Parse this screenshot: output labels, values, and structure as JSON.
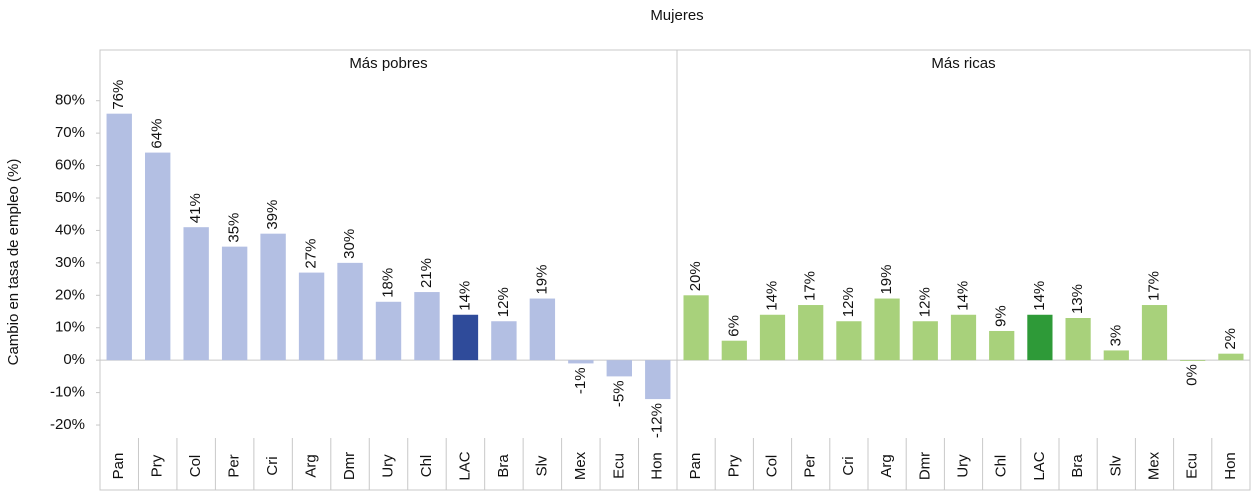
{
  "title": "Mujeres",
  "ylabel": "Cambio en tasa de empleo (%)",
  "chart_data": [
    {
      "type": "bar",
      "title": "Más pobres",
      "categories": [
        "Pan",
        "Pry",
        "Col",
        "Per",
        "Cri",
        "Arg",
        "Dmr",
        "Ury",
        "Chl",
        "LAC",
        "Bra",
        "Slv",
        "Mex",
        "Ecu",
        "Hon"
      ],
      "values": [
        76,
        64,
        41,
        35,
        39,
        27,
        30,
        18,
        21,
        14,
        12,
        19,
        -1,
        -5,
        -12
      ],
      "value_labels": [
        "76%",
        "64%",
        "41%",
        "35%",
        "39%",
        "27%",
        "30%",
        "18%",
        "21%",
        "14%",
        "12%",
        "19%",
        "-1%",
        "-5%",
        "-12%"
      ],
      "colors": [
        "#b3bfe3",
        "#b3bfe3",
        "#b3bfe3",
        "#b3bfe3",
        "#b3bfe3",
        "#b3bfe3",
        "#b3bfe3",
        "#b3bfe3",
        "#b3bfe3",
        "#2f4b9a",
        "#b3bfe3",
        "#b3bfe3",
        "#b3bfe3",
        "#b3bfe3",
        "#b3bfe3"
      ],
      "ylim": [
        -24,
        87
      ],
      "yticks": [
        {
          "value": -20,
          "label": "-20%"
        },
        {
          "value": -10,
          "label": "-10%"
        },
        {
          "value": 0,
          "label": "0%"
        },
        {
          "value": 10,
          "label": "10%"
        },
        {
          "value": 20,
          "label": "20%"
        },
        {
          "value": 30,
          "label": "30%"
        },
        {
          "value": 40,
          "label": "40%"
        },
        {
          "value": 50,
          "label": "50%"
        },
        {
          "value": 60,
          "label": "60%"
        },
        {
          "value": 70,
          "label": "70%"
        },
        {
          "value": 80,
          "label": "80%"
        }
      ]
    },
    {
      "type": "bar",
      "title": "Más ricas",
      "categories": [
        "Pan",
        "Pry",
        "Col",
        "Per",
        "Cri",
        "Arg",
        "Dmr",
        "Ury",
        "Chl",
        "LAC",
        "Bra",
        "Slv",
        "Mex",
        "Ecu",
        "Hon"
      ],
      "values": [
        20,
        6,
        14,
        17,
        12,
        19,
        12,
        14,
        9,
        14,
        13,
        3,
        17,
        0,
        2
      ],
      "value_labels": [
        "20%",
        "6%",
        "14%",
        "17%",
        "12%",
        "19%",
        "12%",
        "14%",
        "9%",
        "14%",
        "13%",
        "3%",
        "17%",
        "0%",
        "2%"
      ],
      "colors": [
        "#a8d17b",
        "#a8d17b",
        "#a8d17b",
        "#a8d17b",
        "#a8d17b",
        "#a8d17b",
        "#a8d17b",
        "#a8d17b",
        "#a8d17b",
        "#2e9a38",
        "#a8d17b",
        "#a8d17b",
        "#a8d17b",
        "#a8d17b",
        "#a8d17b"
      ],
      "ylim": [
        -24,
        87
      ]
    }
  ]
}
